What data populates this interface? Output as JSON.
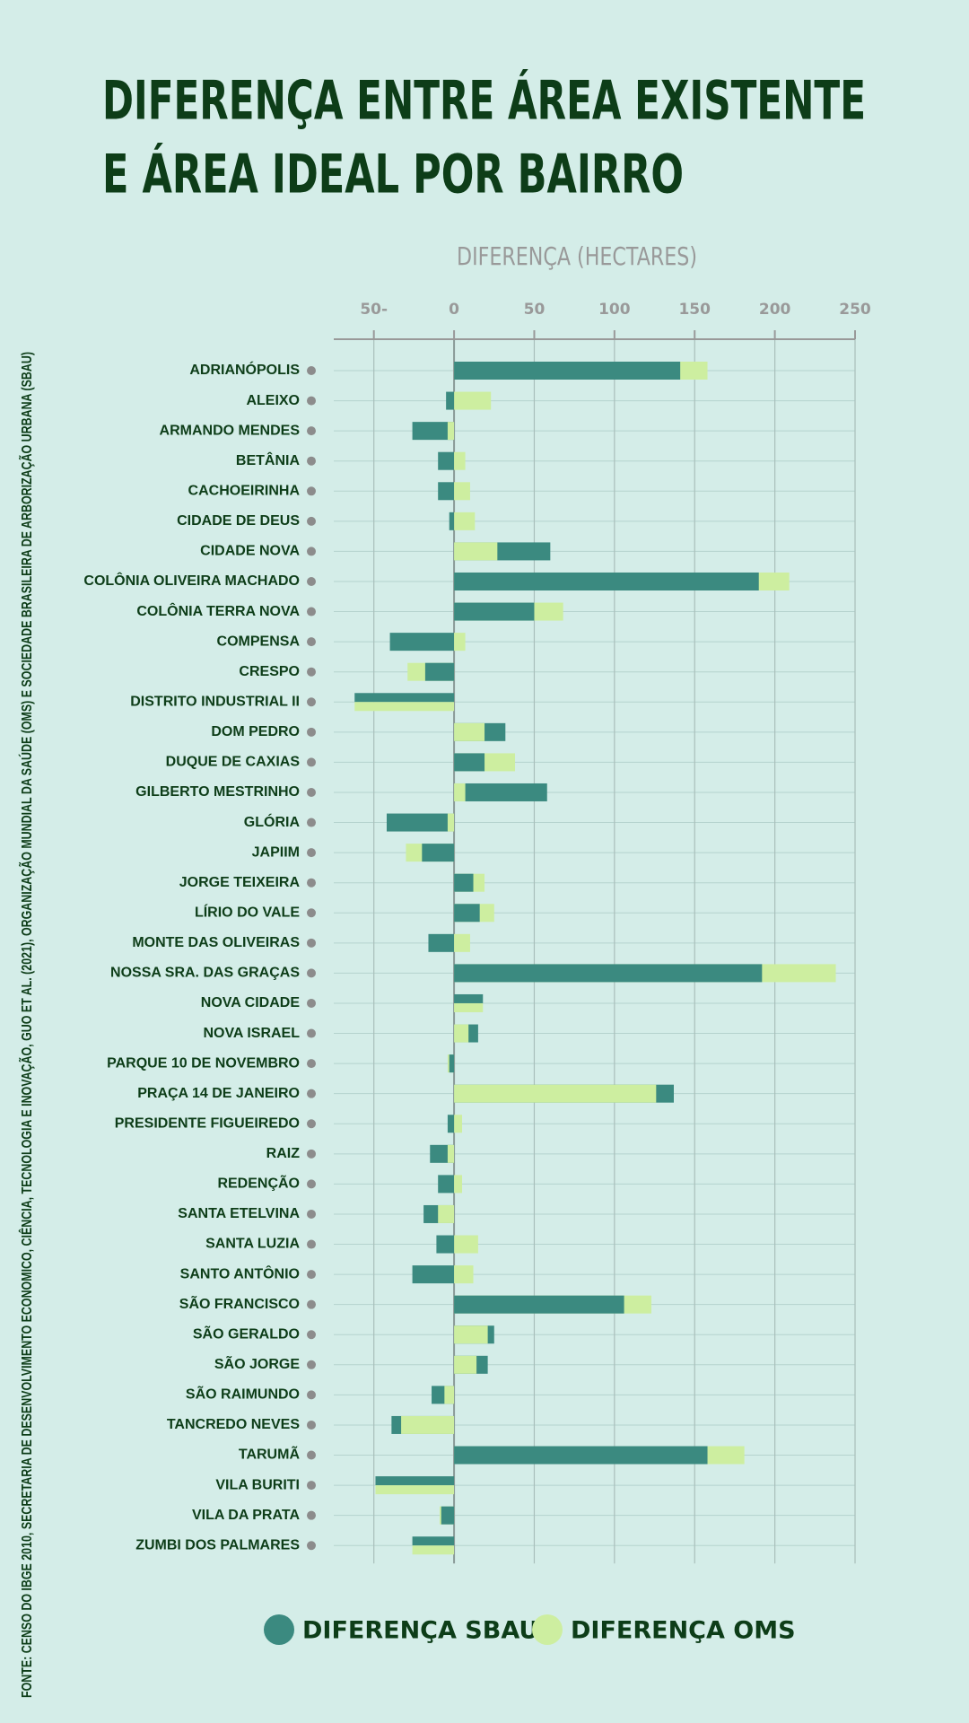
{
  "chart_data": {
    "type": "bar",
    "orientation": "horizontal",
    "title": [
      "DIFERENÇA ENTRE ÁREA EXISTENTE",
      "E ÁREA IDEAL POR BAIRRO"
    ],
    "x_label": "DIFERENÇA (HECTARES)",
    "source": "FONTE: CENSO DO IBGE 2010, SECRETARIA DE DESENVOLVIMENTO ECONOMICO, CIÊNCIA, TECNOLOGIA E INOVAÇÃO, GUO ET AL. (2021), ORGANIZAÇÃO MUNDIAL DA SAÚDE (OMS) E SOCIEDADE BRASILEIRA DE ARBORIZAÇÃO URBANA (SBAU)",
    "categories": [
      "ADRIANÓPOLIS",
      "ALEIXO",
      "ARMANDO MENDES",
      "BETÂNIA",
      "CACHOEIRINHA",
      "CIDADE DE DEUS",
      "CIDADE NOVA",
      "COLÔNIA OLIVEIRA MACHADO",
      "COLÔNIA TERRA NOVA",
      "COMPENSA",
      "CRESPO",
      "DISTRITO INDUSTRIAL II",
      "DOM PEDRO",
      "DUQUE DE CAXIAS",
      "GILBERTO MESTRINHO",
      "GLÓRIA",
      "JAPIIM",
      "JORGE TEIXEIRA",
      "LÍRIO DO VALE",
      "MONTE DAS OLIVEIRAS",
      "NOSSA SRA. DAS GRAÇAS",
      "NOVA CIDADE",
      "NOVA ISRAEL",
      "PARQUE 10 DE NOVEMBRO",
      "PRAÇA 14 DE JANEIRO",
      "PRESIDENTE FIGUEIREDO",
      "RAIZ",
      "REDENÇÃO",
      "SANTA ETELVINA",
      "SANTA LUZIA",
      "SANTO ANTÔNIO",
      "SÃO FRANCISCO",
      "SÃO GERALDO",
      "SÃO JORGE",
      "SÃO RAIMUNDO",
      "TANCREDO NEVES",
      "TARUMÃ",
      "VILA BURITI",
      "VILA DA PRATA",
      "ZUMBI DOS PALMARES"
    ],
    "series": [
      {
        "name": "DIFERENÇA SBAU",
        "color": "#3b8a80",
        "values": [
          141,
          -5,
          -26,
          -10,
          -10,
          -3,
          60,
          190,
          50,
          -40,
          -18,
          -62,
          32,
          19,
          58,
          -42,
          -20,
          12,
          16,
          -16,
          192,
          18,
          15,
          -3,
          137,
          -4,
          -15,
          -10,
          -19,
          -11,
          -26,
          106,
          25,
          21,
          -14,
          -39,
          158,
          -49,
          -8,
          -26
        ]
      },
      {
        "name": "DIFERENÇA OMS",
        "color": "#cdeea0",
        "values": [
          158,
          23,
          -4,
          7,
          10,
          13,
          27,
          209,
          68,
          7,
          -29,
          -62,
          19,
          38,
          7,
          -4,
          -30,
          19,
          25,
          10,
          238,
          18,
          9,
          -4,
          126,
          5,
          -4,
          5,
          -10,
          15,
          12,
          123,
          21,
          14,
          -6,
          -33,
          181,
          -49,
          -9,
          -26
        ]
      }
    ],
    "xlim": [
      -75,
      250
    ],
    "xticks": [
      {
        "value": -50,
        "label": "50-"
      },
      0,
      50,
      100,
      150,
      200,
      250
    ],
    "grid": true
  }
}
